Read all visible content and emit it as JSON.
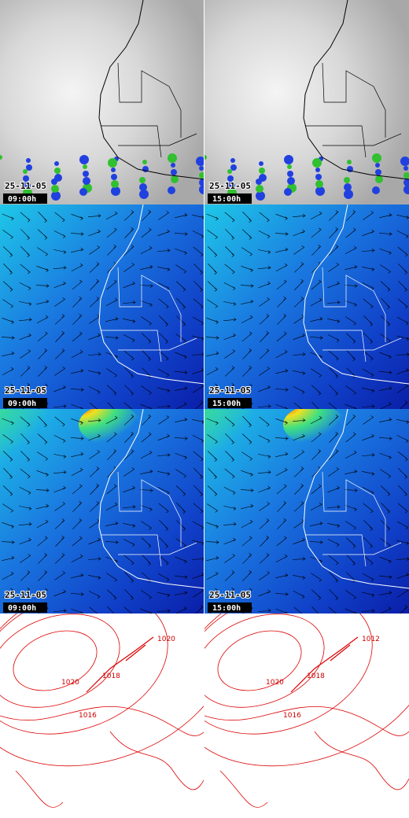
{
  "rows": [
    {
      "panels": [
        {
          "date": "25-11-05",
          "time": "09:00h"
        },
        {
          "date": "25-11-05",
          "time": "15:00h"
        }
      ]
    },
    {
      "panels": [
        {
          "date": "25-11-05",
          "time": "09:00h"
        },
        {
          "date": "25-11-05",
          "time": "15:00h"
        }
      ]
    },
    {
      "panels": [
        {
          "date": "25-11-05",
          "time": "09:00h"
        },
        {
          "date": "25-11-05",
          "time": "15:00h"
        }
      ]
    }
  ],
  "pressure": [
    {
      "labels": [
        "1020",
        "1018",
        "1016",
        "1020"
      ]
    },
    {
      "labels": [
        "1020",
        "1018",
        "1016",
        "1012"
      ]
    }
  ]
}
